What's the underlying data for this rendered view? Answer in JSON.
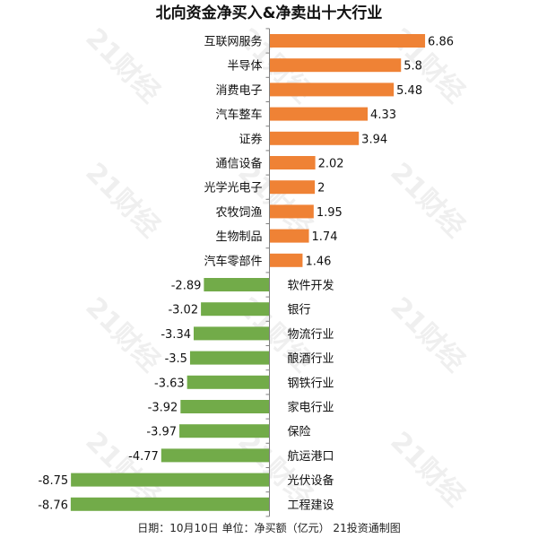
{
  "watermark_text": "21财经",
  "chart_data": {
    "type": "bar",
    "orientation": "horizontal",
    "title": "北向资金净买入&净卖出十大行业",
    "footer": "日期：10月10日 单位：净买额（亿元） 21投资通制图",
    "colors": {
      "positive": "#ef8235",
      "negative": "#72ab49"
    },
    "categories": [
      "互联网服务",
      "半导体",
      "消费电子",
      "汽车整车",
      "证券",
      "通信设备",
      "光学光电子",
      "农牧饲渔",
      "生物制品",
      "汽车零部件",
      "软件开发",
      "银行",
      "物流行业",
      "酿酒行业",
      "钢铁行业",
      "家电行业",
      "保险",
      "航运港口",
      "光伏设备",
      "工程建设"
    ],
    "values": [
      6.86,
      5.8,
      5.48,
      4.33,
      3.94,
      2.02,
      2,
      1.95,
      1.74,
      1.46,
      -2.89,
      -3.02,
      -3.34,
      -3.5,
      -3.63,
      -3.92,
      -3.97,
      -4.77,
      -8.75,
      -8.76
    ],
    "value_labels": [
      "6.86",
      "5.8",
      "5.48",
      "4.33",
      "3.94",
      "2.02",
      "2",
      "1.95",
      "1.74",
      "1.46",
      "-2.89",
      "-3.02",
      "-3.34",
      "-3.5",
      "-3.63",
      "-3.92",
      "-3.97",
      "-4.77",
      "-8.75",
      "-8.76"
    ],
    "xlim": [
      -8.76,
      6.86
    ],
    "grid": false,
    "legend": "none"
  }
}
